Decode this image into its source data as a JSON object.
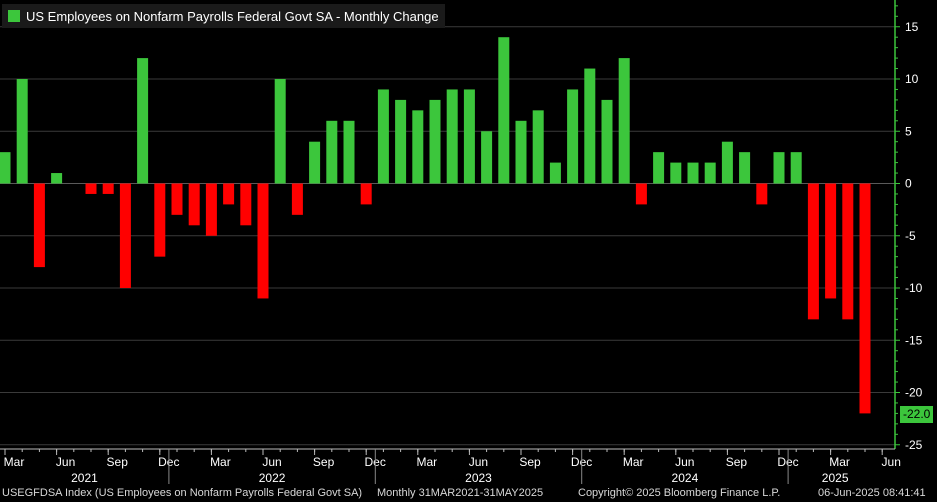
{
  "legend": {
    "label": "US Employees on Nonfarm Payrolls Federal Govt SA - Monthly Change",
    "color": "#3cc63c"
  },
  "last_value_label": "-22.0",
  "footer": {
    "ticker": "USEGFDSA Index (US Employees on Nonfarm Payrolls Federal Govt SA)",
    "range": "Monthly 31MAR2021-31MAY2025",
    "copyright": "Copyright© 2025 Bloomberg Finance L.P.",
    "timestamp": "06-Jun-2025 08:41:41"
  },
  "colors": {
    "positive": "#3cc63c",
    "negative": "#ff0000",
    "background": "#000000",
    "axis": "#3cc63c",
    "grid": "#3a3a3a"
  },
  "chart_data": {
    "type": "bar",
    "title": "US Employees on Nonfarm Payrolls Federal Govt SA - Monthly Change",
    "xlabel": "",
    "ylabel": "",
    "ylim": [
      -25,
      17
    ],
    "y_ticks": [
      15,
      10,
      5,
      0,
      -5,
      -10,
      -15,
      -20,
      -25
    ],
    "grid": true,
    "legend_position": "top-left",
    "x_start": "2021-03",
    "x_end": "2025-05",
    "month_tick_labels": [
      {
        "month": "2021-03",
        "label": "Mar"
      },
      {
        "month": "2021-06",
        "label": "Jun"
      },
      {
        "month": "2021-09",
        "label": "Sep"
      },
      {
        "month": "2021-12",
        "label": "Dec"
      },
      {
        "month": "2022-03",
        "label": "Mar"
      },
      {
        "month": "2022-06",
        "label": "Jun"
      },
      {
        "month": "2022-09",
        "label": "Sep"
      },
      {
        "month": "2022-12",
        "label": "Dec"
      },
      {
        "month": "2023-03",
        "label": "Mar"
      },
      {
        "month": "2023-06",
        "label": "Jun"
      },
      {
        "month": "2023-09",
        "label": "Sep"
      },
      {
        "month": "2023-12",
        "label": "Dec"
      },
      {
        "month": "2024-03",
        "label": "Mar"
      },
      {
        "month": "2024-06",
        "label": "Jun"
      },
      {
        "month": "2024-09",
        "label": "Sep"
      },
      {
        "month": "2024-12",
        "label": "Dec"
      },
      {
        "month": "2025-03",
        "label": "Mar"
      },
      {
        "month": "2025-06",
        "label": "Jun"
      }
    ],
    "year_labels": [
      "2021",
      "2022",
      "2023",
      "2024",
      "2025"
    ],
    "series": [
      {
        "name": "US Employees on Nonfarm Payrolls Federal Govt SA - Monthly Change",
        "x": [
          "2021-03",
          "2021-04",
          "2021-05",
          "2021-06",
          "2021-07",
          "2021-08",
          "2021-09",
          "2021-10",
          "2021-11",
          "2021-12",
          "2022-01",
          "2022-02",
          "2022-03",
          "2022-04",
          "2022-05",
          "2022-06",
          "2022-07",
          "2022-08",
          "2022-09",
          "2022-10",
          "2022-11",
          "2022-12",
          "2023-01",
          "2023-02",
          "2023-03",
          "2023-04",
          "2023-05",
          "2023-06",
          "2023-07",
          "2023-08",
          "2023-09",
          "2023-10",
          "2023-11",
          "2023-12",
          "2024-01",
          "2024-02",
          "2024-03",
          "2024-04",
          "2024-05",
          "2024-06",
          "2024-07",
          "2024-08",
          "2024-09",
          "2024-10",
          "2024-11",
          "2024-12",
          "2025-01",
          "2025-02",
          "2025-03",
          "2025-04",
          "2025-05"
        ],
        "values": [
          3,
          10,
          -8,
          1,
          0,
          -1,
          -1,
          -10,
          12,
          -7,
          -3,
          -4,
          -5,
          -2,
          -4,
          -11,
          10,
          -3,
          4,
          6,
          6,
          -2,
          9,
          8,
          7,
          8,
          9,
          9,
          5,
          14,
          6,
          7,
          2,
          9,
          11,
          8,
          12,
          -2,
          3,
          2,
          2,
          2,
          4,
          3,
          -2,
          3,
          3,
          -13,
          -11,
          -13,
          -22
        ]
      }
    ]
  }
}
